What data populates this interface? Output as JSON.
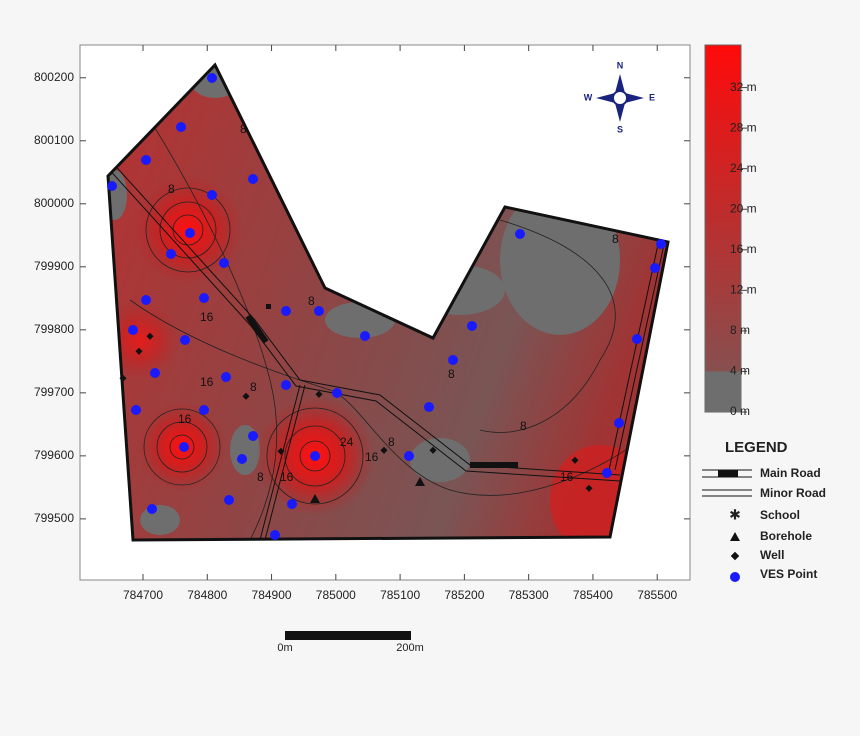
{
  "map": {
    "xlim": [
      784602,
      785551
    ],
    "ylim": [
      799403,
      800252
    ],
    "xticks": [
      784700,
      784800,
      784900,
      785000,
      785100,
      785200,
      785300,
      785400,
      785500
    ],
    "yticks": [
      799500,
      799600,
      799700,
      799800,
      799900,
      800000,
      800100,
      800200
    ],
    "colorbar": {
      "lim": [
        0,
        36.2
      ],
      "ticks": [
        {
          "value": 0,
          "label": "0 m"
        },
        {
          "value": 4,
          "label": "4 m"
        },
        {
          "value": 8,
          "label": "8 m"
        },
        {
          "value": 12,
          "label": "12 m"
        },
        {
          "value": 16,
          "label": "16 m"
        },
        {
          "value": 20,
          "label": "20 m"
        },
        {
          "value": 24,
          "label": "24 m"
        },
        {
          "value": 28,
          "label": "28 m"
        },
        {
          "value": 32,
          "label": "32 m"
        }
      ]
    },
    "contour_labels": [
      "8",
      "8",
      "8",
      "8",
      "8",
      "8",
      "8",
      "16",
      "16",
      "16",
      "16",
      "16",
      "16",
      "24",
      "8",
      "8"
    ],
    "compass": {
      "n": "N",
      "s": "S",
      "e": "E",
      "w": "W"
    },
    "legend": {
      "title": "LEGEND",
      "items": [
        "Main Road",
        "Minor Road",
        "School",
        "Borehole",
        "Well",
        "VES Point"
      ]
    },
    "scale_bar": {
      "start": "0m",
      "end": "200m"
    }
  }
}
